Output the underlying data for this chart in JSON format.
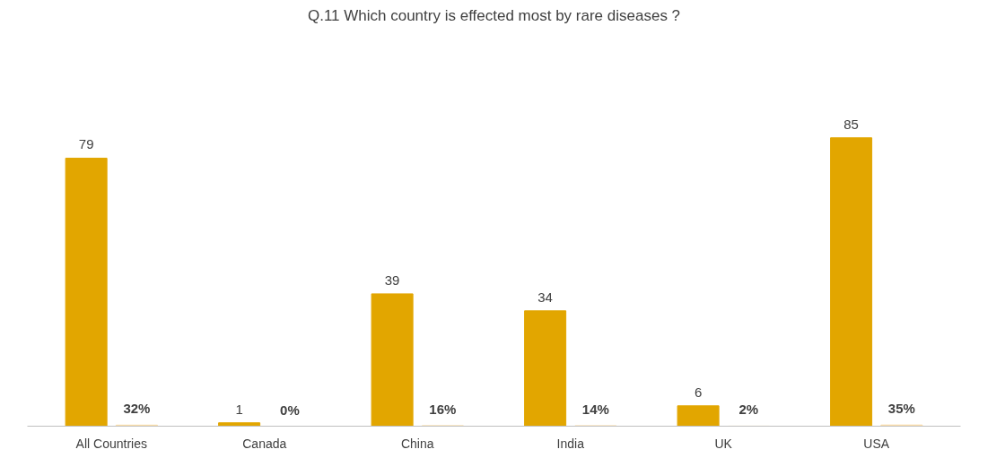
{
  "chart_data": {
    "type": "bar",
    "title": "Q.11 Which country is effected most by rare diseases ?",
    "categories": [
      "All Countries",
      "Canada",
      "China",
      "India",
      "UK",
      "USA"
    ],
    "series": [
      {
        "color": "#e2a600",
        "values": [
          79,
          1,
          39,
          34,
          6,
          85
        ],
        "value_labels": [
          "79",
          "1",
          "39",
          "34",
          "6",
          "85"
        ]
      },
      {
        "color": "#fbdca5",
        "values": [
          0.32,
          0,
          0.16,
          0.14,
          0.02,
          0.35
        ],
        "value_labels": [
          "32%",
          "0%",
          "16%",
          "14%",
          "2%",
          "35%"
        ]
      }
    ]
  }
}
